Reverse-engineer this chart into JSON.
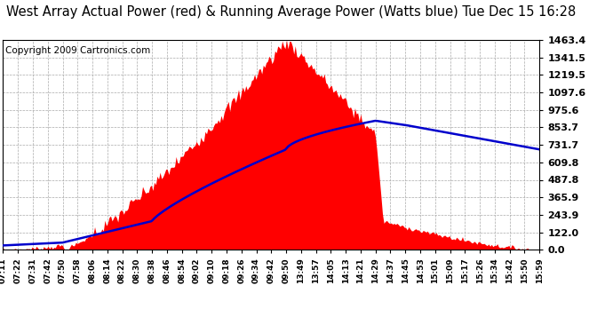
{
  "title": "West Array Actual Power (red) & Running Average Power (Watts blue) Tue Dec 15 16:28",
  "copyright": "Copyright 2009 Cartronics.com",
  "yticks": [
    0.0,
    122.0,
    243.9,
    365.9,
    487.8,
    609.8,
    731.7,
    853.7,
    975.6,
    1097.6,
    1219.5,
    1341.5,
    1463.4
  ],
  "ymax": 1463.4,
  "xtick_labels": [
    "07:11",
    "07:22",
    "07:31",
    "07:42",
    "07:50",
    "07:58",
    "08:06",
    "08:14",
    "08:22",
    "08:30",
    "08:38",
    "08:46",
    "08:54",
    "09:02",
    "09:10",
    "09:18",
    "09:26",
    "09:34",
    "09:42",
    "09:50",
    "13:49",
    "13:57",
    "14:05",
    "14:13",
    "14:21",
    "14:29",
    "14:37",
    "14:45",
    "14:53",
    "15:01",
    "15:09",
    "15:17",
    "15:26",
    "15:34",
    "15:42",
    "15:50",
    "15:59"
  ],
  "bg_color": "#ffffff",
  "plot_bg_color": "#ffffff",
  "grid_color": "#aaaaaa",
  "actual_color": "#ff0000",
  "avg_color": "#0000cc",
  "title_fontsize": 10.5,
  "copyright_fontsize": 7.5
}
